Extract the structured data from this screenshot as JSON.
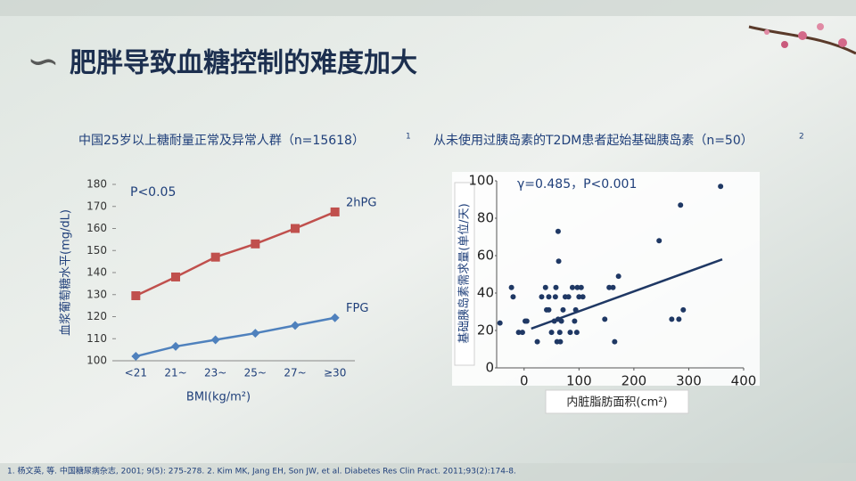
{
  "title": "肥胖导致血糖控制的难度加大",
  "footnote": "1. 杨文英, 等. 中国糖尿病杂志, 2001; 9(5): 275-278. 2. Kim MK, Jang EH, Son JW, et al. Diabetes Res Clin Pract. 2011;93(2):174-8.",
  "chart_data": [
    {
      "type": "line",
      "title": "中国25岁以上糖耐量正常及异常人群（n=15618）",
      "title_note": "1",
      "annotation": "P<0.05",
      "x_label": "BMI(kg/m²)",
      "y_label": "血浆葡萄糖水平(mg/dL)",
      "categories": [
        "<21",
        "21~",
        "23~",
        "25~",
        "27~",
        "≥30"
      ],
      "series": [
        {
          "name": "2hPG",
          "color": "#c0504d",
          "marker": "square",
          "values": [
            129.5,
            138,
            147,
            153,
            160,
            167.5
          ]
        },
        {
          "name": "FPG",
          "color": "#4f81bd",
          "marker": "diamond",
          "values": [
            102,
            106.5,
            109.5,
            112.5,
            116,
            119.5
          ]
        }
      ],
      "ylim": [
        100,
        180
      ],
      "yticks": [
        100,
        110,
        120,
        130,
        140,
        150,
        160,
        170,
        180
      ]
    },
    {
      "type": "scatter",
      "title": "从未使用过胰岛素的T2DM患者起始基础胰岛素（n=50）",
      "title_note": "2",
      "annotation": "γ=0.485，P<0.001",
      "x_label": "内脏脂肪面积(cm²)",
      "y_label": "基础胰岛素需求量(单位/天)",
      "color": "#1f3864",
      "x": [
        -44,
        -23,
        -20,
        -10,
        -3,
        2,
        5,
        24,
        32,
        39,
        41,
        45,
        45,
        50,
        55,
        57,
        58,
        60,
        62,
        62,
        63,
        65,
        66,
        68,
        71,
        75,
        81,
        84,
        88,
        92,
        94,
        96,
        97,
        100,
        104,
        107,
        147,
        155,
        162,
        165,
        172,
        246,
        269,
        285,
        282,
        290,
        358
      ],
      "y": [
        24,
        43,
        38,
        19,
        19,
        25,
        25,
        14,
        38,
        43,
        31,
        38,
        31,
        19,
        25,
        38,
        43,
        14,
        26,
        73,
        57,
        19,
        14,
        25,
        31,
        38,
        38,
        19,
        43,
        25,
        31,
        19,
        43,
        38,
        43,
        38,
        26,
        43,
        43,
        14,
        49,
        68,
        26,
        87,
        26,
        31,
        97
      ],
      "trendline": {
        "x": [
          13,
          361
        ],
        "y": [
          21,
          58
        ],
        "color": "#1f3864"
      },
      "xlim": [
        -50,
        400
      ],
      "xticks": [
        0,
        100,
        200,
        300,
        400
      ],
      "ylim": [
        0,
        100
      ],
      "yticks": [
        0,
        20,
        40,
        60,
        80,
        100
      ]
    }
  ]
}
